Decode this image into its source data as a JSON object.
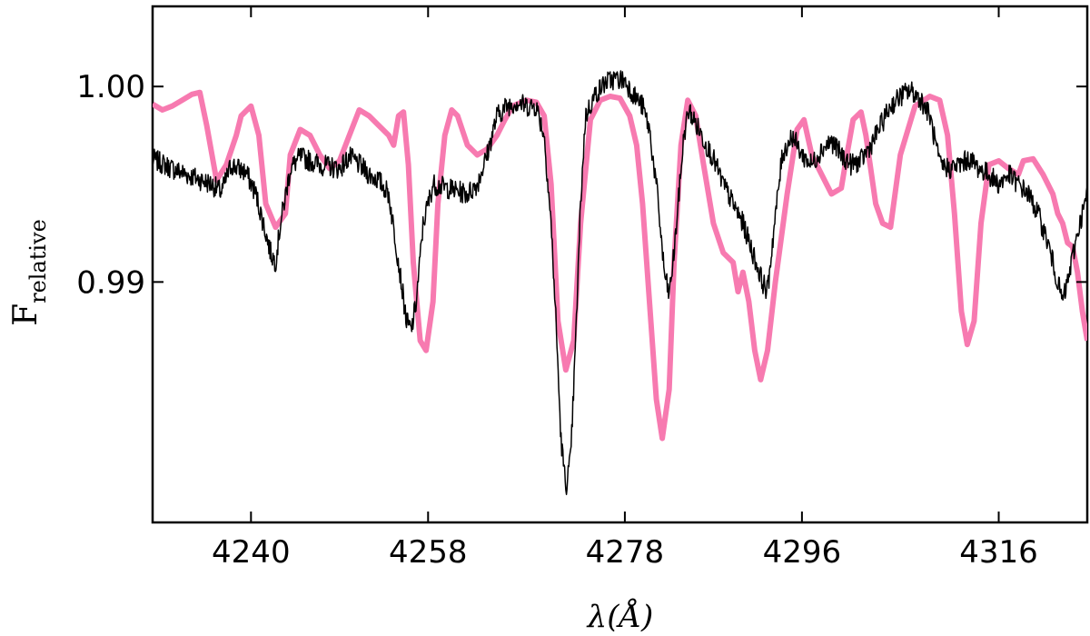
{
  "chart_data": {
    "type": "line",
    "xlabel": "λ(Å)",
    "ylabel_main": "F",
    "ylabel_sub": "relative",
    "xlim": [
      4230,
      4325
    ],
    "ylim": [
      0.9777,
      1.0041
    ],
    "x_ticks": [
      4240,
      4258,
      4278,
      4296,
      4316
    ],
    "y_ticks": [
      0.99,
      1.0
    ],
    "x_tick_labels": [
      "4240",
      "4258",
      "4278",
      "4296",
      "4316"
    ],
    "y_tick_labels": [
      "0.99",
      "1.00"
    ],
    "grid": false,
    "series": [
      {
        "role": "observed",
        "color": "#000000",
        "points": [
          [
            4230,
            0.9963
          ],
          [
            4232,
            0.9958
          ],
          [
            4234,
            0.9954
          ],
          [
            4236,
            0.995
          ],
          [
            4237,
            0.9946
          ],
          [
            4238,
            0.996
          ],
          [
            4239.5,
            0.9956
          ],
          [
            4240.5,
            0.9945
          ],
          [
            4241.5,
            0.9925
          ],
          [
            4242,
            0.9915
          ],
          [
            4242.5,
            0.991
          ],
          [
            4243,
            0.993
          ],
          [
            4244,
            0.9958
          ],
          [
            4245,
            0.9964
          ],
          [
            4247,
            0.996
          ],
          [
            4249,
            0.9958
          ],
          [
            4250,
            0.9964
          ],
          [
            4251,
            0.996
          ],
          [
            4252,
            0.9955
          ],
          [
            4253,
            0.9952
          ],
          [
            4254,
            0.9945
          ],
          [
            4255,
            0.991
          ],
          [
            4255.8,
            0.988
          ],
          [
            4256.3,
            0.9875
          ],
          [
            4256.8,
            0.989
          ],
          [
            4257.5,
            0.993
          ],
          [
            4258.5,
            0.995
          ],
          [
            4260,
            0.9948
          ],
          [
            4262,
            0.9945
          ],
          [
            4263,
            0.995
          ],
          [
            4264,
            0.9965
          ],
          [
            4265,
            0.9985
          ],
          [
            4266,
            0.999
          ],
          [
            4267,
            0.9992
          ],
          [
            4268,
            0.999
          ],
          [
            4269,
            0.999
          ],
          [
            4269.8,
            0.9975
          ],
          [
            4270.5,
            0.993
          ],
          [
            4271,
            0.988
          ],
          [
            4271.5,
            0.982
          ],
          [
            4272,
            0.9795
          ],
          [
            4272.5,
            0.981
          ],
          [
            4273,
            0.987
          ],
          [
            4273.5,
            0.994
          ],
          [
            4274,
            0.9985
          ],
          [
            4275,
            0.9996
          ],
          [
            4276,
            1.0002
          ],
          [
            4277,
            1.0004
          ],
          [
            4278,
            1.0003
          ],
          [
            4279,
            0.9995
          ],
          [
            4279.8,
            0.999
          ],
          [
            4280.5,
            0.9978
          ],
          [
            4281.3,
            0.9945
          ],
          [
            4282,
            0.9905
          ],
          [
            4282.5,
            0.9893
          ],
          [
            4283,
            0.9915
          ],
          [
            4284,
            0.9975
          ],
          [
            4284.5,
            0.9988
          ],
          [
            4285.5,
            0.9978
          ],
          [
            4287,
            0.9963
          ],
          [
            4288,
            0.995
          ],
          [
            4289,
            0.994
          ],
          [
            4290,
            0.993
          ],
          [
            4291,
            0.9915
          ],
          [
            4292,
            0.99
          ],
          [
            4292.5,
            0.9895
          ],
          [
            4293,
            0.992
          ],
          [
            4294,
            0.9965
          ],
          [
            4295,
            0.9975
          ],
          [
            4296,
            0.9965
          ],
          [
            4297,
            0.996
          ],
          [
            4298,
            0.9968
          ],
          [
            4299,
            0.9972
          ],
          [
            4300,
            0.9965
          ],
          [
            4301,
            0.996
          ],
          [
            4302,
            0.9962
          ],
          [
            4303,
            0.997
          ],
          [
            4304,
            0.998
          ],
          [
            4305,
            0.999
          ],
          [
            4306,
            0.9995
          ],
          [
            4307,
            0.9998
          ],
          [
            4308,
            0.9994
          ],
          [
            4309,
            0.9985
          ],
          [
            4310,
            0.996
          ],
          [
            4311,
            0.9958
          ],
          [
            4312,
            0.996
          ],
          [
            4313,
            0.9963
          ],
          [
            4314,
            0.9958
          ],
          [
            4315,
            0.9955
          ],
          [
            4316,
            0.995
          ],
          [
            4317,
            0.9955
          ],
          [
            4318,
            0.995
          ],
          [
            4319,
            0.9945
          ],
          [
            4320,
            0.9935
          ],
          [
            4321,
            0.992
          ],
          [
            4322,
            0.99
          ],
          [
            4322.5,
            0.989
          ],
          [
            4323,
            0.99
          ],
          [
            4324,
            0.9925
          ],
          [
            4325,
            0.9945
          ]
        ]
      },
      {
        "role": "model",
        "color": "#f77ab0",
        "points": [
          [
            4230,
            0.9991
          ],
          [
            4231,
            0.9988
          ],
          [
            4232,
            0.999
          ],
          [
            4233,
            0.9993
          ],
          [
            4234,
            0.9996
          ],
          [
            4234.8,
            0.9997
          ],
          [
            4235.5,
            0.998
          ],
          [
            4236.5,
            0.9952
          ],
          [
            4237.5,
            0.996
          ],
          [
            4238.5,
            0.9975
          ],
          [
            4239,
            0.9985
          ],
          [
            4240,
            0.999
          ],
          [
            4240.8,
            0.9975
          ],
          [
            4241.5,
            0.994
          ],
          [
            4242.5,
            0.9928
          ],
          [
            4243.5,
            0.9935
          ],
          [
            4244,
            0.9965
          ],
          [
            4245,
            0.9978
          ],
          [
            4246,
            0.9975
          ],
          [
            4247,
            0.9965
          ],
          [
            4248,
            0.9958
          ],
          [
            4249,
            0.9962
          ],
          [
            4250,
            0.9975
          ],
          [
            4251,
            0.9988
          ],
          [
            4252,
            0.9985
          ],
          [
            4253,
            0.998
          ],
          [
            4254,
            0.9975
          ],
          [
            4254.5,
            0.997
          ],
          [
            4255,
            0.9985
          ],
          [
            4255.5,
            0.9987
          ],
          [
            4256,
            0.996
          ],
          [
            4256.5,
            0.991
          ],
          [
            4257.2,
            0.987
          ],
          [
            4257.8,
            0.9865
          ],
          [
            4258.5,
            0.989
          ],
          [
            4259,
            0.994
          ],
          [
            4259.7,
            0.9975
          ],
          [
            4260.4,
            0.9988
          ],
          [
            4261,
            0.9985
          ],
          [
            4262,
            0.997
          ],
          [
            4263,
            0.9965
          ],
          [
            4264,
            0.9968
          ],
          [
            4265,
            0.9975
          ],
          [
            4265.8,
            0.9983
          ],
          [
            4266.6,
            0.999
          ],
          [
            4268,
            0.9993
          ],
          [
            4269,
            0.9992
          ],
          [
            4269.8,
            0.9985
          ],
          [
            4270.5,
            0.995
          ],
          [
            4271.2,
            0.988
          ],
          [
            4272,
            0.9855
          ],
          [
            4272.8,
            0.987
          ],
          [
            4273.5,
            0.993
          ],
          [
            4274.5,
            0.9983
          ],
          [
            4275.5,
            0.9993
          ],
          [
            4276.5,
            0.9995
          ],
          [
            4277.5,
            0.9994
          ],
          [
            4278.5,
            0.9985
          ],
          [
            4279.2,
            0.997
          ],
          [
            4279.8,
            0.994
          ],
          [
            4280.5,
            0.989
          ],
          [
            4281.2,
            0.984
          ],
          [
            4281.8,
            0.982
          ],
          [
            4282.5,
            0.9845
          ],
          [
            4283,
            0.991
          ],
          [
            4283.7,
            0.997
          ],
          [
            4284.4,
            0.9993
          ],
          [
            4285.2,
            0.9985
          ],
          [
            4286,
            0.996
          ],
          [
            4287,
            0.993
          ],
          [
            4288,
            0.9915
          ],
          [
            4289,
            0.991
          ],
          [
            4289.5,
            0.9895
          ],
          [
            4290,
            0.9905
          ],
          [
            4290.6,
            0.989
          ],
          [
            4291.2,
            0.9865
          ],
          [
            4291.8,
            0.985
          ],
          [
            4292.5,
            0.9865
          ],
          [
            4293.3,
            0.99
          ],
          [
            4294.5,
            0.9945
          ],
          [
            4295.5,
            0.9978
          ],
          [
            4296.2,
            0.9983
          ],
          [
            4297,
            0.9965
          ],
          [
            4298,
            0.9955
          ],
          [
            4299,
            0.9945
          ],
          [
            4300,
            0.9948
          ],
          [
            4300.5,
            0.9963
          ],
          [
            4301.2,
            0.9983
          ],
          [
            4302,
            0.9987
          ],
          [
            4302.5,
            0.9975
          ],
          [
            4303.5,
            0.994
          ],
          [
            4304.2,
            0.993
          ],
          [
            4305,
            0.9928
          ],
          [
            4306,
            0.9965
          ],
          [
            4307.5,
            0.999
          ],
          [
            4309,
            0.9995
          ],
          [
            4310,
            0.9993
          ],
          [
            4310.8,
            0.9975
          ],
          [
            4311.5,
            0.9935
          ],
          [
            4312.2,
            0.9885
          ],
          [
            4312.8,
            0.9868
          ],
          [
            4313.5,
            0.988
          ],
          [
            4314.2,
            0.993
          ],
          [
            4315,
            0.996
          ],
          [
            4316,
            0.9962
          ],
          [
            4317,
            0.9958
          ],
          [
            4318,
            0.9955
          ],
          [
            4318.5,
            0.9962
          ],
          [
            4319.5,
            0.9963
          ],
          [
            4320.5,
            0.9955
          ],
          [
            4321.5,
            0.9945
          ],
          [
            4322,
            0.9935
          ],
          [
            4322.5,
            0.993
          ],
          [
            4323,
            0.992
          ],
          [
            4323.5,
            0.9918
          ],
          [
            4324,
            0.9905
          ],
          [
            4324.5,
            0.9885
          ],
          [
            4325,
            0.987
          ]
        ]
      }
    ]
  }
}
